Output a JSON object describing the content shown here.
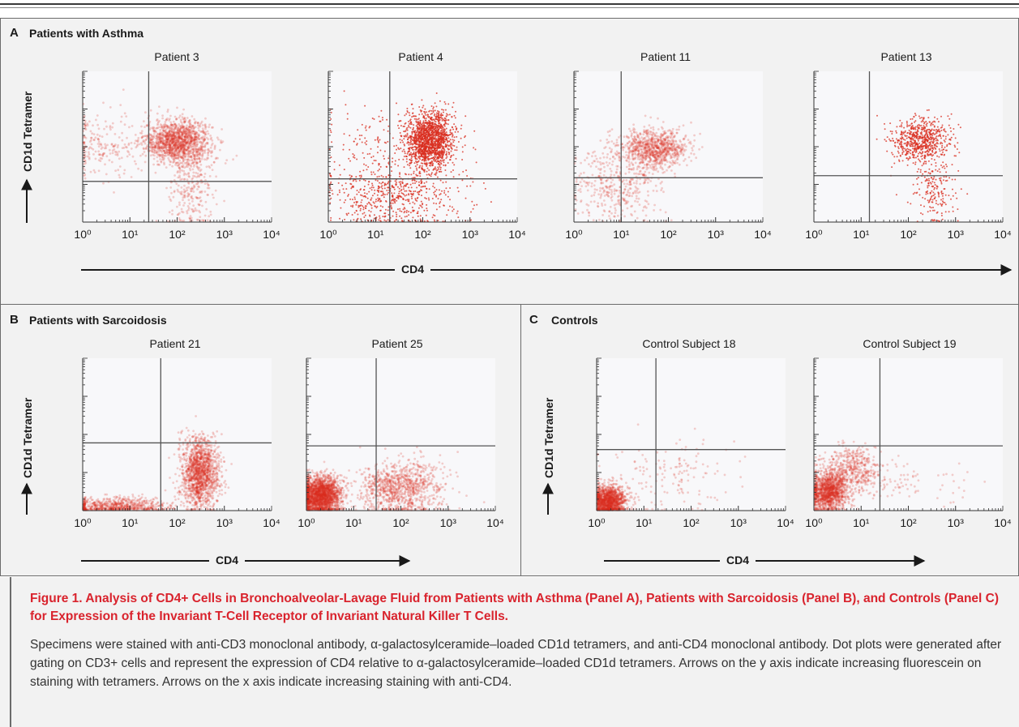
{
  "panels": {
    "A": {
      "letter": "A",
      "title": "Patients with Asthma",
      "y_axis": "CD1d Tetramer",
      "x_axis": "CD4"
    },
    "B": {
      "letter": "B",
      "title": "Patients with Sarcoidosis",
      "y_axis": "CD1d Tetramer",
      "x_axis": "CD4"
    },
    "C": {
      "letter": "C",
      "title": "Controls",
      "y_axis": "CD1d Tetramer",
      "x_axis": "CD4"
    }
  },
  "caption": {
    "title": "Figure 1. Analysis of CD4+ Cells in Bronchoalveolar-Lavage Fluid from Patients with Asthma (Panel A), Patients with Sarcoidosis (Panel B), and Controls (Panel C) for Expression of the Invariant T-Cell Receptor of Invariant Natural Killer T Cells.",
    "body": "Specimens were stained with anti-CD3 monoclonal antibody, α-galactosylceramide–loaded CD1d tetramers, and anti-CD4 monoclonal antibody. Dot plots were generated after gating on CD3+ cells and represent the expression of CD4 relative to α-galactosylceramide–loaded CD1d tetramers. Arrows on the y axis indicate increasing fluorescein on staining with tetramers. Arrows on the x axis indicate increasing staining with anti-CD4."
  },
  "colors": {
    "dots": "#d92d1f",
    "caption_title": "#d9232d",
    "axis": "#333333",
    "gate_line": "#555555"
  },
  "chart_data": [
    {
      "type": "scatter",
      "panel": "A",
      "title": "Patient 3",
      "xlabel": "CD4",
      "ylabel": "CD1d Tetramer",
      "x_scale": "log",
      "y_scale": "log",
      "xlim": [
        1,
        10000
      ],
      "ylim": [
        1,
        10000
      ],
      "x_ticks": [
        "10^0",
        "10^1",
        "10^2",
        "10^3",
        "10^4"
      ],
      "gate": {
        "x": 25,
        "y": 12
      },
      "style": "dense",
      "clusters": [
        {
          "x": 100,
          "y": 140,
          "sx": 0.35,
          "sy": 0.28,
          "n": 1400
        },
        {
          "x": 200,
          "y": 10,
          "sx": 0.25,
          "sy": 0.6,
          "n": 300
        },
        {
          "x": 3,
          "y": 100,
          "sx": 0.5,
          "sy": 0.4,
          "n": 200
        }
      ]
    },
    {
      "type": "scatter",
      "panel": "A",
      "title": "Patient 4",
      "xlabel": "CD4",
      "ylabel": "CD1d Tetramer",
      "x_scale": "log",
      "y_scale": "log",
      "xlim": [
        1,
        10000
      ],
      "ylim": [
        1,
        10000
      ],
      "x_ticks": [
        "10^0",
        "10^1",
        "10^2",
        "10^3",
        "10^4"
      ],
      "gate": {
        "x": 20,
        "y": 14
      },
      "style": "sparse",
      "clusters": [
        {
          "x": 140,
          "y": 150,
          "sx": 0.25,
          "sy": 0.38,
          "n": 1600
        },
        {
          "x": 30,
          "y": 5,
          "sx": 0.7,
          "sy": 0.45,
          "n": 600
        },
        {
          "x": 10,
          "y": 100,
          "sx": 0.6,
          "sy": 0.6,
          "n": 150
        }
      ]
    },
    {
      "type": "scatter",
      "panel": "A",
      "title": "Patient 11",
      "xlabel": "CD4",
      "ylabel": "CD1d Tetramer",
      "x_scale": "log",
      "y_scale": "log",
      "xlim": [
        1,
        10000
      ],
      "ylim": [
        1,
        10000
      ],
      "x_ticks": [
        "10^0",
        "10^1",
        "10^2",
        "10^3",
        "10^4"
      ],
      "gate": {
        "x": 10,
        "y": 15
      },
      "style": "dense",
      "clusters": [
        {
          "x": 50,
          "y": 90,
          "sx": 0.35,
          "sy": 0.25,
          "n": 900
        },
        {
          "x": 8,
          "y": 10,
          "sx": 0.45,
          "sy": 0.5,
          "n": 400
        }
      ]
    },
    {
      "type": "scatter",
      "panel": "A",
      "title": "Patient 13",
      "xlabel": "CD4",
      "ylabel": "CD1d Tetramer",
      "x_scale": "log",
      "y_scale": "log",
      "xlim": [
        1,
        10000
      ],
      "ylim": [
        1,
        10000
      ],
      "x_ticks": [
        "10^0",
        "10^1",
        "10^2",
        "10^3",
        "10^4"
      ],
      "gate": {
        "x": 15,
        "y": 17
      },
      "style": "sparse",
      "clusters": [
        {
          "x": 180,
          "y": 150,
          "sx": 0.32,
          "sy": 0.3,
          "n": 650
        },
        {
          "x": 350,
          "y": 8,
          "sx": 0.25,
          "sy": 0.5,
          "n": 200
        }
      ]
    },
    {
      "type": "scatter",
      "panel": "B",
      "title": "Patient 21",
      "xlabel": "CD4",
      "ylabel": "CD1d Tetramer",
      "x_scale": "log",
      "y_scale": "log",
      "xlim": [
        1,
        10000
      ],
      "ylim": [
        1,
        10000
      ],
      "x_ticks": [
        "10^0",
        "10^1",
        "10^2",
        "10^3",
        "10^4"
      ],
      "gate": {
        "x": 45,
        "y": 60
      },
      "style": "dense",
      "clusters": [
        {
          "x": 300,
          "y": 10,
          "sx": 0.2,
          "sy": 0.45,
          "n": 1500
        },
        {
          "x": 5,
          "y": 1.3,
          "sx": 0.6,
          "sy": 0.12,
          "n": 700
        }
      ]
    },
    {
      "type": "scatter",
      "panel": "B",
      "title": "Patient 25",
      "xlabel": "CD4",
      "ylabel": "CD1d Tetramer",
      "x_scale": "log",
      "y_scale": "log",
      "xlim": [
        1,
        10000
      ],
      "ylim": [
        1,
        10000
      ],
      "x_ticks": [
        "10^0",
        "10^1",
        "10^2",
        "10^3",
        "10^4"
      ],
      "gate": {
        "x": 30,
        "y": 50
      },
      "style": "dense",
      "clusters": [
        {
          "x": 2,
          "y": 2.5,
          "sx": 0.22,
          "sy": 0.25,
          "n": 2200
        },
        {
          "x": 100,
          "y": 4,
          "sx": 0.45,
          "sy": 0.35,
          "n": 1000
        }
      ]
    },
    {
      "type": "scatter",
      "panel": "C",
      "title": "Control Subject 18",
      "xlabel": "CD4",
      "ylabel": "CD1d Tetramer",
      "x_scale": "log",
      "y_scale": "log",
      "xlim": [
        1,
        10000
      ],
      "ylim": [
        1,
        10000
      ],
      "x_ticks": [
        "10^0",
        "10^1",
        "10^2",
        "10^3",
        "10^4"
      ],
      "gate": {
        "x": 18,
        "y": 40
      },
      "style": "dense",
      "clusters": [
        {
          "x": 1.8,
          "y": 1.8,
          "sx": 0.17,
          "sy": 0.2,
          "n": 1400
        },
        {
          "x": 40,
          "y": 8,
          "sx": 0.7,
          "sy": 0.5,
          "n": 150
        }
      ]
    },
    {
      "type": "scatter",
      "panel": "C",
      "title": "Control Subject 19",
      "xlabel": "CD4",
      "ylabel": "CD1d Tetramer",
      "x_scale": "log",
      "y_scale": "log",
      "xlim": [
        1,
        10000
      ],
      "ylim": [
        1,
        10000
      ],
      "x_ticks": [
        "10^0",
        "10^1",
        "10^2",
        "10^3",
        "10^4"
      ],
      "gate": {
        "x": 25,
        "y": 50
      },
      "style": "dense",
      "clusters": [
        {
          "x": 2,
          "y": 3,
          "sx": 0.2,
          "sy": 0.25,
          "n": 1300
        },
        {
          "x": 6,
          "y": 12,
          "sx": 0.3,
          "sy": 0.3,
          "n": 500
        },
        {
          "x": 60,
          "y": 6,
          "sx": 0.6,
          "sy": 0.3,
          "n": 100
        }
      ]
    }
  ]
}
